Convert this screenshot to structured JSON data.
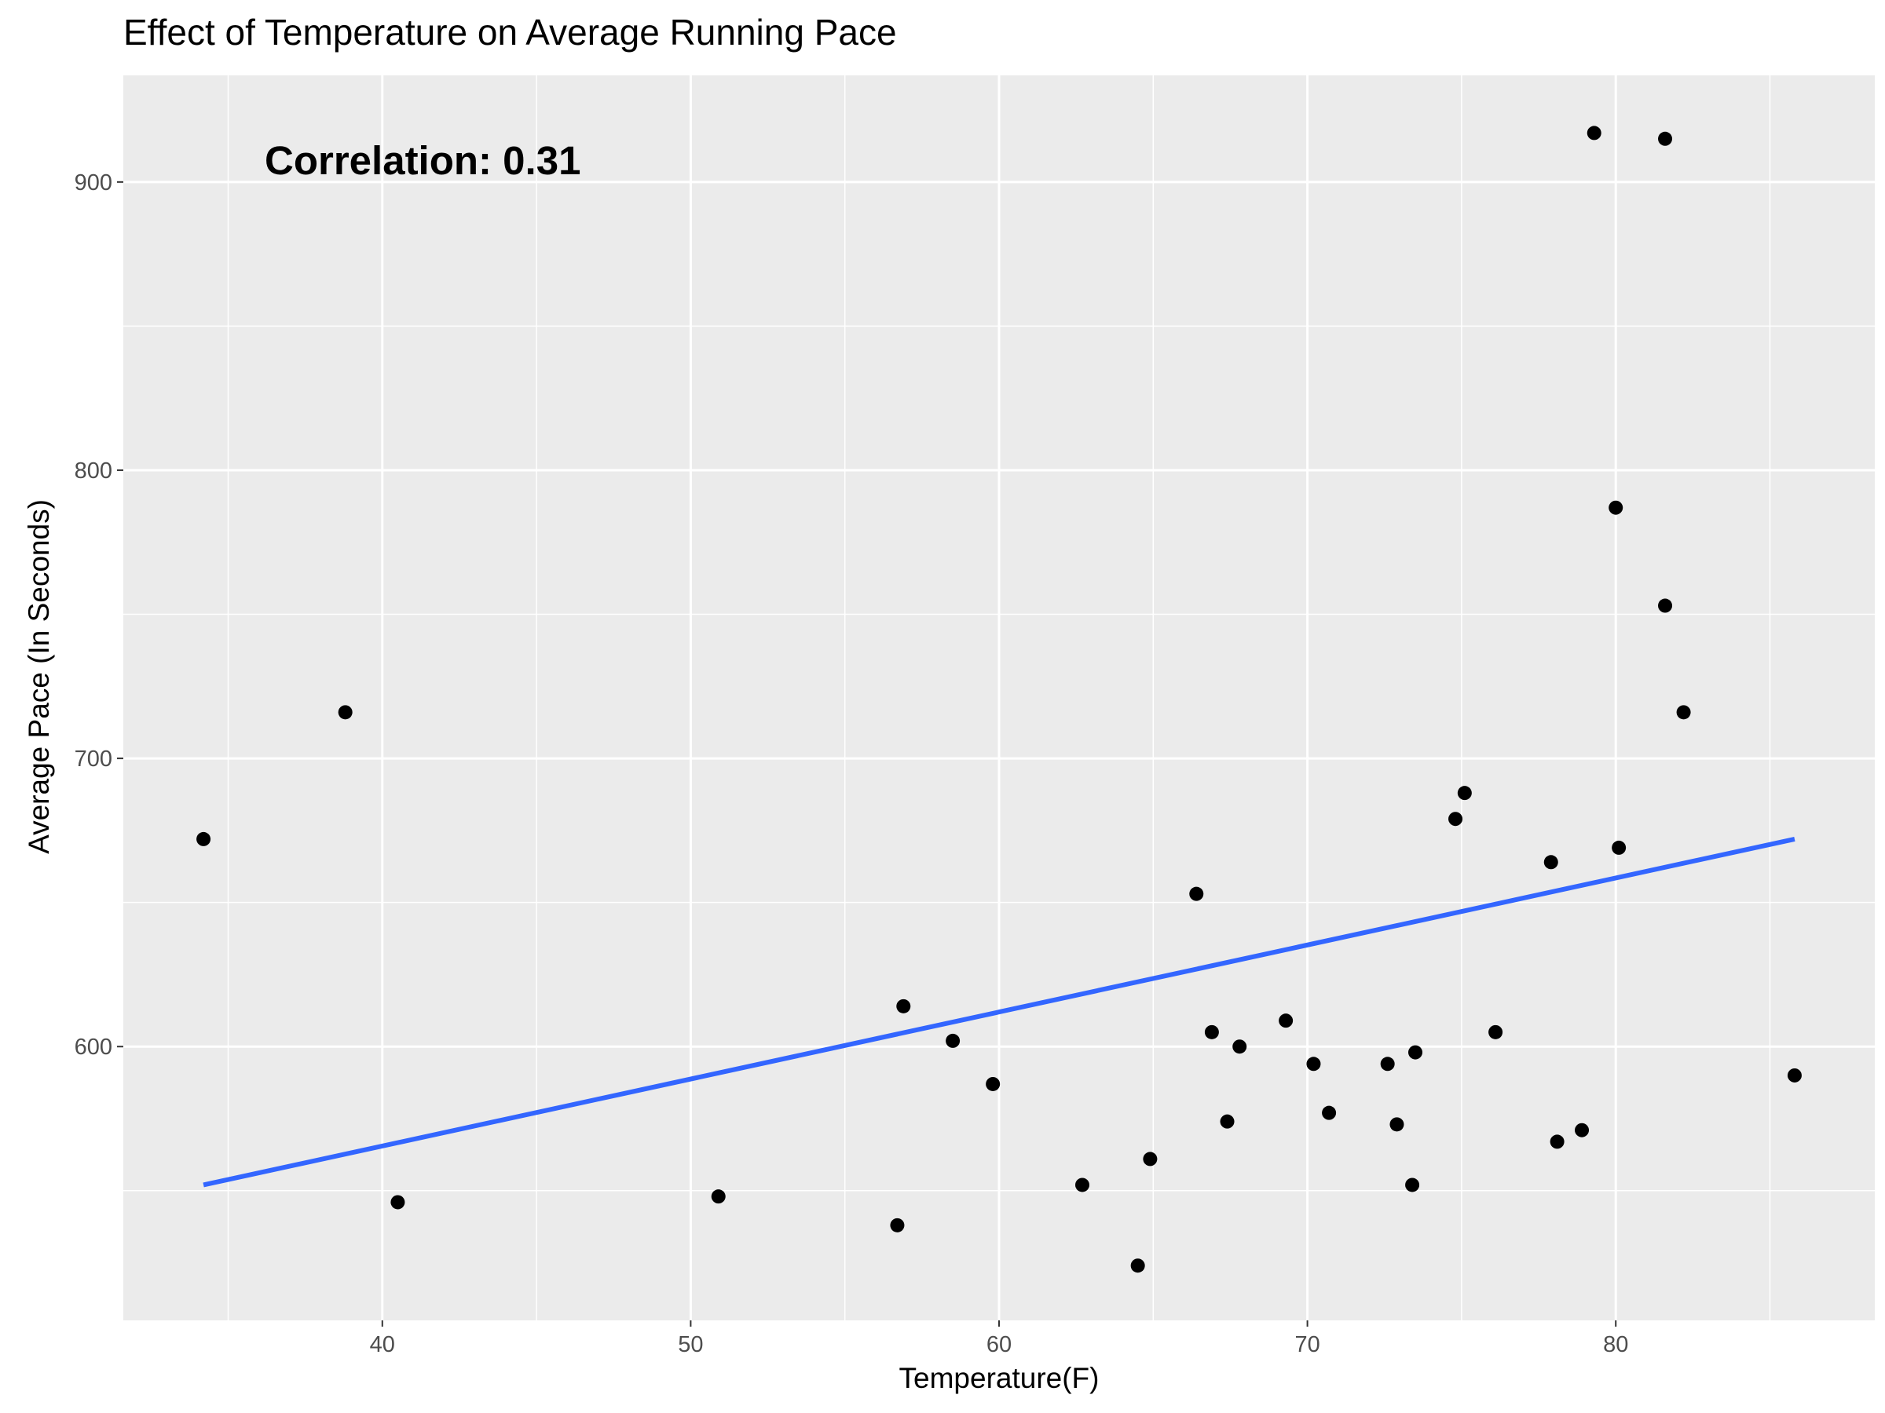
{
  "chart_data": {
    "type": "scatter",
    "title": "Effect of Temperature on Average Running Pace",
    "xlabel": "Temperature(F)",
    "ylabel": "Average Pace (In Seconds)",
    "annotation": "Correlation: 0.31",
    "xlim": [
      31.6,
      88.4
    ],
    "ylim": [
      505,
      937
    ],
    "x_ticks": [
      40,
      50,
      60,
      70,
      80
    ],
    "x_tick_labels": [
      "40",
      "50",
      "60",
      "70",
      "80"
    ],
    "y_ticks": [
      600,
      700,
      800,
      900
    ],
    "y_tick_labels": [
      "600",
      "700",
      "800",
      "900"
    ],
    "grid": true,
    "legend": "none",
    "panel_color": "#EBEBEB",
    "grid_color": "#FFFFFF",
    "point_color": "#000000",
    "line_color": "#3366FF",
    "series": [
      {
        "type": "scatter",
        "points": [
          {
            "x": 34.2,
            "y": 672
          },
          {
            "x": 38.8,
            "y": 716
          },
          {
            "x": 40.5,
            "y": 546
          },
          {
            "x": 50.9,
            "y": 548
          },
          {
            "x": 56.7,
            "y": 538
          },
          {
            "x": 56.9,
            "y": 614
          },
          {
            "x": 58.5,
            "y": 602
          },
          {
            "x": 59.8,
            "y": 587
          },
          {
            "x": 62.7,
            "y": 552
          },
          {
            "x": 64.5,
            "y": 524
          },
          {
            "x": 64.9,
            "y": 561
          },
          {
            "x": 66.4,
            "y": 653
          },
          {
            "x": 66.9,
            "y": 605
          },
          {
            "x": 67.4,
            "y": 574
          },
          {
            "x": 67.8,
            "y": 600
          },
          {
            "x": 69.3,
            "y": 609
          },
          {
            "x": 70.2,
            "y": 594
          },
          {
            "x": 70.7,
            "y": 577
          },
          {
            "x": 72.6,
            "y": 594
          },
          {
            "x": 72.9,
            "y": 573
          },
          {
            "x": 73.4,
            "y": 552
          },
          {
            "x": 73.5,
            "y": 598
          },
          {
            "x": 74.8,
            "y": 679
          },
          {
            "x": 75.1,
            "y": 688
          },
          {
            "x": 76.1,
            "y": 605
          },
          {
            "x": 77.9,
            "y": 664
          },
          {
            "x": 78.1,
            "y": 567
          },
          {
            "x": 78.9,
            "y": 571
          },
          {
            "x": 79.3,
            "y": 917
          },
          {
            "x": 80.0,
            "y": 787
          },
          {
            "x": 80.1,
            "y": 669
          },
          {
            "x": 81.6,
            "y": 915
          },
          {
            "x": 81.6,
            "y": 753
          },
          {
            "x": 82.2,
            "y": 716
          },
          {
            "x": 85.8,
            "y": 590
          }
        ]
      },
      {
        "type": "line",
        "fit": "linear",
        "points": [
          {
            "x": 34.2,
            "y": 552
          },
          {
            "x": 85.8,
            "y": 672
          }
        ]
      }
    ]
  }
}
